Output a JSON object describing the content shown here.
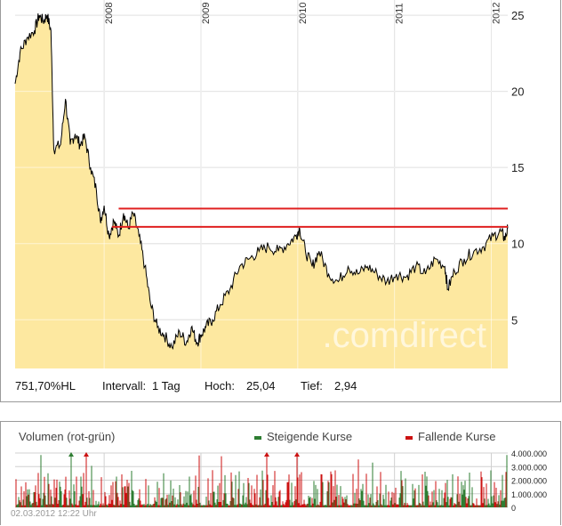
{
  "chart_data": [
    {
      "type": "area",
      "x_ticks": [
        "2008",
        "2009",
        "2010",
        "2011",
        "2012"
      ],
      "y_ticks": [
        5,
        10,
        15,
        20,
        25
      ],
      "ylim": [
        1.8,
        26
      ],
      "xlim": [
        2007.08,
        2012.17
      ],
      "grid": true,
      "colors": {
        "fill": "#fde8a0",
        "line": "#000000",
        "resistance": "#e02020",
        "grid": "#c8c8c8"
      },
      "series": [
        {
          "x": [
            2007.08,
            2007.13,
            2007.2,
            2007.28,
            2007.33,
            2007.37,
            2007.41,
            2007.45,
            2007.48,
            2007.55,
            2007.6,
            2007.65,
            2007.7,
            2007.75,
            2007.8,
            2007.86,
            2007.92,
            2007.96,
            2008.0,
            2008.05,
            2008.1,
            2008.15,
            2008.2,
            2008.25,
            2008.3,
            2008.36,
            2008.42,
            2008.48,
            2008.55,
            2008.62,
            2008.7,
            2008.78,
            2008.85,
            2008.9,
            2008.96,
            2009.0,
            2009.05,
            2009.12,
            2009.2,
            2009.3,
            2009.4,
            2009.5,
            2009.6,
            2009.7,
            2009.8,
            2009.9,
            2009.98,
            2010.02,
            2010.08,
            2010.15,
            2010.22,
            2010.32,
            2010.42,
            2010.52,
            2010.62,
            2010.72,
            2010.82,
            2010.92,
            2011.02,
            2011.12,
            2011.22,
            2011.32,
            2011.42,
            2011.52,
            2011.55,
            2011.62,
            2011.72,
            2011.82,
            2011.92,
            2012.02,
            2012.1,
            2012.14,
            2012.17
          ],
          "y": [
            20.5,
            22.5,
            23.5,
            24.0,
            25.0,
            24.6,
            25.0,
            24.0,
            16.2,
            16.5,
            19.5,
            16.5,
            17.2,
            16.5,
            17.0,
            15.0,
            13.5,
            11.5,
            12.5,
            10.5,
            11.5,
            10.5,
            12.0,
            11.0,
            12.0,
            10.5,
            8.5,
            6.0,
            4.5,
            4.0,
            3.2,
            4.2,
            3.5,
            4.5,
            3.5,
            4.0,
            4.5,
            5.0,
            6.0,
            7.0,
            8.5,
            9.0,
            9.5,
            9.8,
            9.5,
            10.0,
            10.5,
            11.0,
            9.5,
            8.5,
            9.5,
            8.0,
            7.5,
            8.5,
            8.0,
            8.5,
            8.0,
            7.5,
            8.0,
            7.8,
            8.5,
            8.0,
            9.0,
            8.5,
            7.0,
            8.2,
            9.0,
            9.5,
            9.8,
            10.5,
            10.8,
            10.3,
            11.0
          ]
        }
      ],
      "resistance_levels": [
        12.3,
        11.1
      ]
    },
    {
      "type": "bar",
      "title": "Volumen (rot-grün)",
      "y_ticks": [
        "0",
        "1.000.000",
        "2.000.000",
        "3.000.000",
        "4.000.000"
      ],
      "ylim": [
        0,
        4000000
      ],
      "series": [
        {
          "name": "Steigende Kurse",
          "color": "#2e7d32"
        },
        {
          "name": "Fallende Kurse",
          "color": "#cc1111"
        }
      ]
    }
  ],
  "info": {
    "change": "751,70%HL",
    "interval_label": "Intervall:",
    "interval_value": "1 Tag",
    "high_label": "Hoch:",
    "high_value": "25,04",
    "low_label": "Tief:",
    "low_value": "2,94"
  },
  "watermark": ".comdirect",
  "timestamp": "02.03.2012 12:22 Uhr"
}
